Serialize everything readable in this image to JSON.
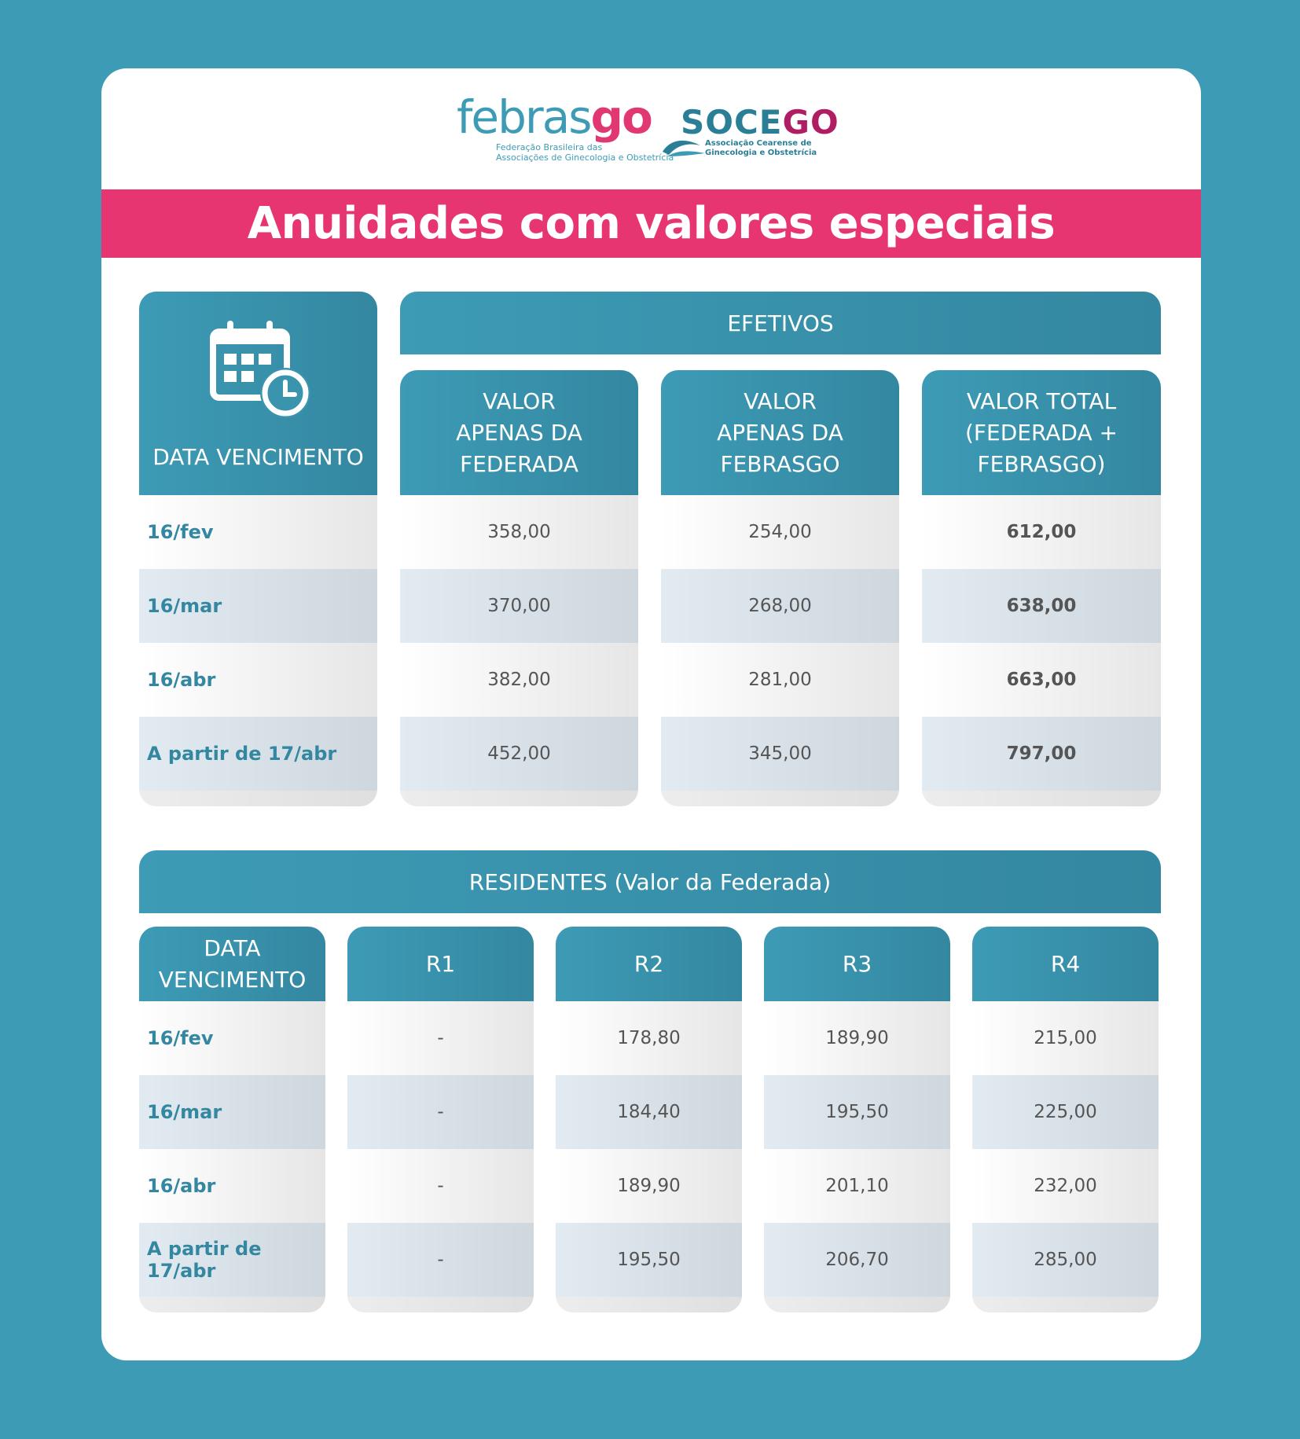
{
  "logos": {
    "febrasgo": {
      "word_main": "febras",
      "word_accent": "go",
      "subtitle": "Federação Brasileira das\nAssociações de Ginecologia e Obstetrícia"
    },
    "socego": {
      "word_main": "SOCE",
      "word_accent": "GO",
      "subtitle": "Associação Cearense de\nGinecologia e Obstetrícia"
    }
  },
  "banner": {
    "title": "Anuidades com valores especiais"
  },
  "efetivos": {
    "section_title": "EFETIVOS",
    "date_header": "DATA VENCIMENTO",
    "date_icon": "calendar-clock-icon",
    "columns": [
      {
        "header": "VALOR APENAS DA FEDERADA"
      },
      {
        "header": "VALOR APENAS DA FEBRASGO"
      },
      {
        "header": "VALOR TOTAL (FEDERADA + FEBRASGO)"
      }
    ],
    "rows": [
      {
        "date": "16/fev",
        "federada": "358,00",
        "febrasgo": "254,00",
        "total": "612,00"
      },
      {
        "date": "16/mar",
        "federada": "370,00",
        "febrasgo": "268,00",
        "total": "638,00"
      },
      {
        "date": "16/abr",
        "federada": "382,00",
        "febrasgo": "281,00",
        "total": "663,00"
      },
      {
        "date": "A partir de 17/abr",
        "federada": "452,00",
        "febrasgo": "345,00",
        "total": "797,00"
      }
    ]
  },
  "residentes": {
    "section_title": "RESIDENTES (Valor da Federada)",
    "date_header": "DATA VENCIMENTO",
    "columns": [
      "R1",
      "R2",
      "R3",
      "R4"
    ],
    "rows": [
      {
        "date": "16/fev",
        "r1": "-",
        "r2": "178,80",
        "r3": "189,90",
        "r4": "215,00"
      },
      {
        "date": "16/mar",
        "r1": "-",
        "r2": "184,40",
        "r3": "195,50",
        "r4": "225,00"
      },
      {
        "date": "16/abr",
        "r1": "-",
        "r2": "189,90",
        "r3": "201,10",
        "r4": "232,00"
      },
      {
        "date": "A partir de 17/abr",
        "r1": "-",
        "r2": "195,50",
        "r3": "206,70",
        "r4": "285,00"
      }
    ]
  },
  "colors": {
    "background": "#3d9bb6",
    "header": "#3487a0",
    "banner": "#e73571",
    "accent_dark": "#b01d63"
  }
}
